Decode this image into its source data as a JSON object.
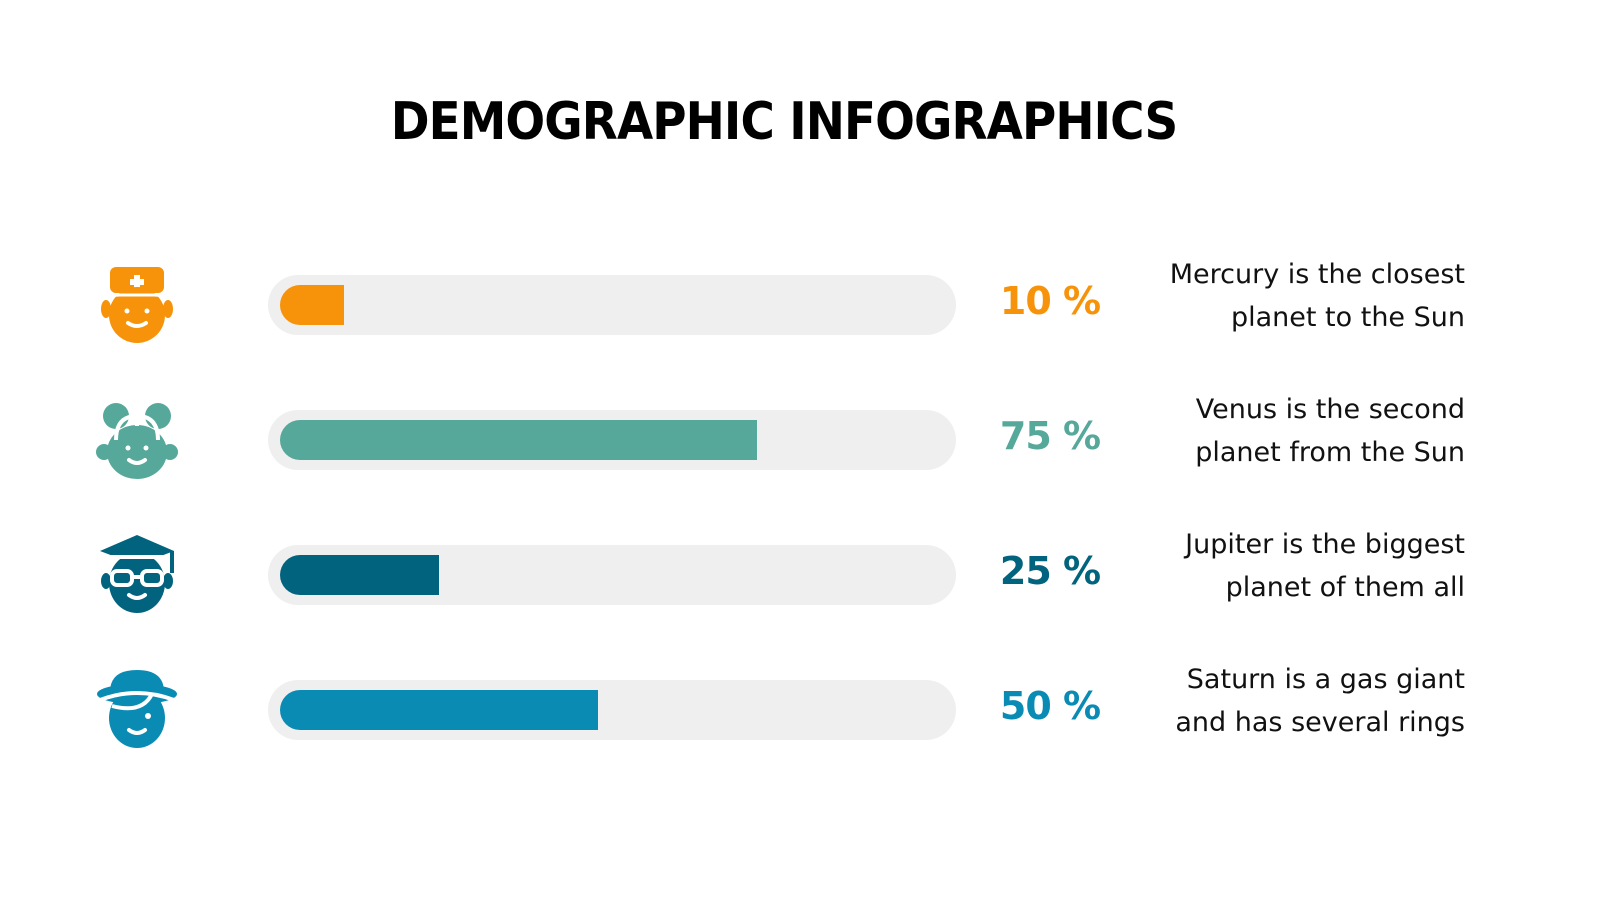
{
  "title": "DEMOGRAPHIC INFOGRAPHICS",
  "chart_data": {
    "type": "bar",
    "orientation": "horizontal",
    "xlim": [
      0,
      100
    ],
    "categories": [
      "Mercury is the closest planet to the Sun",
      "Venus is the second planet from the Sun",
      "Jupiter is the biggest planet of them all",
      "Saturn is a gas giant and has several rings"
    ],
    "values": [
      10,
      75,
      25,
      50
    ]
  },
  "rows": [
    {
      "icon": "doctor-icon",
      "value": 10,
      "label": "10 %",
      "desc_line1": "Mercury is the closest",
      "desc_line2": "planet to the Sun",
      "color": "#f7930a"
    },
    {
      "icon": "girl-icon",
      "value": 75,
      "label": "75 %",
      "desc_line1": "Venus is the second",
      "desc_line2": "planet from the Sun",
      "color": "#56a89a"
    },
    {
      "icon": "graduate-icon",
      "value": 25,
      "label": "25 %",
      "desc_line1": "Jupiter is the biggest",
      "desc_line2": "planet of them all",
      "color": "#02637e"
    },
    {
      "icon": "hat-person-icon",
      "value": 50,
      "label": "50 %",
      "desc_line1": "Saturn is a gas giant",
      "desc_line2": "and has several rings",
      "color": "#0a8bb4"
    }
  ]
}
